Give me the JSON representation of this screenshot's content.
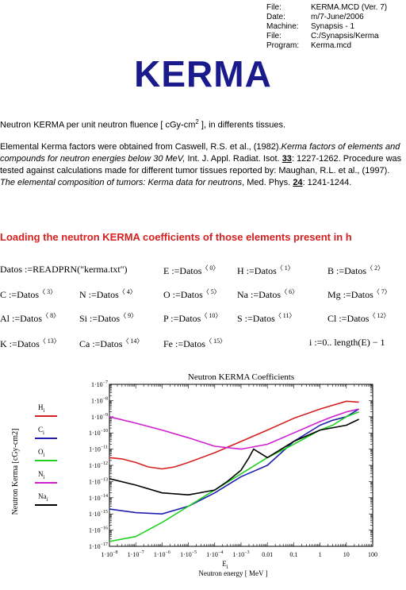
{
  "header": {
    "rows": [
      {
        "key": "File:",
        "value": "KERMA.MCD  (Ver. 7)"
      },
      {
        "key": "Date:",
        "value": "m/7-June/2006"
      },
      {
        "key": "Machine:",
        "value": "Synapsis - 1"
      },
      {
        "key": "File:",
        "value": "C:/Synapsis/Kerma"
      },
      {
        "key": "Program:",
        "value": "Kerma.mcd"
      }
    ]
  },
  "title": "KERMA",
  "intro": {
    "pre": "Neutron KERMA per unit neutron fluence [ cGy-cm",
    "sup": "2",
    "post": " ], in differents tissues."
  },
  "refs": {
    "a": "Elemental Kerma factors were obtained from Caswell, R.S. et al.,  (1982).",
    "b": "Kerma factors of elements and compounds for neutron energies below 30 MeV,",
    "c": "  Int. J. Appl. Radiat. Isot. ",
    "d": "33",
    "e": ": 1227-1262. Procedure was tested against calculations made for different tumor tissues reported by: Maughan, R.L. et al.,  (1997). ",
    "f": "The elemental composition of tumors: Kerma data for neutrons",
    "g": ", Med. Phys. ",
    "h": "24",
    "i": ": 1241-1244."
  },
  "section_heading": "Loading the neutron KERMA coefficients of those elements present in h",
  "equations": [
    {
      "lhs": "Datos",
      "op": " :=",
      "rhs": "READPRN(\"kerma.txt\")",
      "sup": ""
    },
    {
      "lhs": "E",
      "op": " :=",
      "rhs": "Datos",
      "sup": "〈 0〉"
    },
    {
      "lhs": "H",
      "op": " :=",
      "rhs": "Datos",
      "sup": "〈 1〉"
    },
    {
      "lhs": "B",
      "op": " :=",
      "rhs": "Datos",
      "sup": "〈 2〉"
    },
    {
      "lhs": "C",
      "op": " :=",
      "rhs": "Datos",
      "sup": "〈 3〉"
    },
    {
      "lhs": "N",
      "op": " :=",
      "rhs": "Datos",
      "sup": "〈 4〉"
    },
    {
      "lhs": "O",
      "op": " :=",
      "rhs": "Datos",
      "sup": "〈 5〉"
    },
    {
      "lhs": "Na",
      "op": " :=",
      "rhs": "Datos",
      "sup": "〈 6〉"
    },
    {
      "lhs": "Mg",
      "op": " :=",
      "rhs": "Datos",
      "sup": "〈 7〉"
    },
    {
      "lhs": "Al",
      "op": " :=",
      "rhs": "Datos",
      "sup": "〈 8〉"
    },
    {
      "lhs": "Si",
      "op": " :=",
      "rhs": "Datos",
      "sup": "〈 9〉"
    },
    {
      "lhs": "P",
      "op": " :=",
      "rhs": "Datos",
      "sup": "〈 10〉"
    },
    {
      "lhs": "S",
      "op": " :=",
      "rhs": "Datos",
      "sup": "〈 11〉"
    },
    {
      "lhs": "Cl",
      "op": " :=",
      "rhs": "Datos",
      "sup": "〈 12〉"
    },
    {
      "lhs": "K",
      "op": " :=",
      "rhs": "Datos",
      "sup": "〈 13〉"
    },
    {
      "lhs": "Ca",
      "op": " :=",
      "rhs": "Datos",
      "sup": "〈 14〉"
    },
    {
      "lhs": "Fe",
      "op": " :=",
      "rhs": "Datos",
      "sup": "〈 15〉"
    },
    {
      "lhs": "i",
      "op": " :=",
      "rhs": "0..  length(E) − 1",
      "sup": ""
    }
  ],
  "chart_data": {
    "type": "line",
    "title": "Neutron KERMA Coefficients",
    "xlabel_symbol": "E",
    "xlabel_sub": "i",
    "xlabel": "Neutron energy  [ MeV ]",
    "ylabel": "Neutron Kerma  [cGy-cm2]",
    "x_scale": "log",
    "y_scale": "log",
    "xlim": [
      1e-08,
      100
    ],
    "ylim": [
      1e-17,
      1e-07
    ],
    "x_ticks": [
      {
        "base": "1·10",
        "exp": "−8"
      },
      {
        "base": "1·10",
        "exp": "−7"
      },
      {
        "base": "1·10",
        "exp": "−6"
      },
      {
        "base": "1·10",
        "exp": "−5"
      },
      {
        "base": "1·10",
        "exp": "−4"
      },
      {
        "base": "1·10",
        "exp": "−3"
      },
      {
        "base": "0.01",
        "exp": ""
      },
      {
        "base": "0.1",
        "exp": ""
      },
      {
        "base": "1",
        "exp": ""
      },
      {
        "base": "10",
        "exp": ""
      },
      {
        "base": "100",
        "exp": ""
      }
    ],
    "y_ticks": [
      {
        "base": "1·10",
        "exp": "−7"
      },
      {
        "base": "1·10",
        "exp": "−8"
      },
      {
        "base": "1·10",
        "exp": "−9"
      },
      {
        "base": "1·10",
        "exp": "−10"
      },
      {
        "base": "1·10",
        "exp": "−11"
      },
      {
        "base": "1·10",
        "exp": "−12"
      },
      {
        "base": "1·10",
        "exp": "−13"
      },
      {
        "base": "1·10",
        "exp": "−14"
      },
      {
        "base": "1·10",
        "exp": "−15"
      },
      {
        "base": "1·10",
        "exp": "−16"
      },
      {
        "base": "1·10",
        "exp": "−17"
      }
    ],
    "series": [
      {
        "name": "H",
        "sub": "i",
        "color": "#d42020",
        "x": [
          1e-08,
          3e-08,
          1e-07,
          3e-07,
          1e-06,
          3e-06,
          1e-05,
          0.0001,
          0.001,
          0.01,
          0.1,
          1,
          10,
          30
        ],
        "y": [
          3e-12,
          2.5e-12,
          1.5e-12,
          8e-13,
          6e-13,
          8e-13,
          1.5e-12,
          6e-12,
          3e-11,
          1.5e-10,
          8e-10,
          3e-09,
          9e-09,
          8e-09
        ]
      },
      {
        "name": "C",
        "sub": "i",
        "color": "#2020b0",
        "x": [
          1e-08,
          1e-07,
          1e-06,
          1e-05,
          0.0001,
          0.001,
          0.01,
          0.1,
          1,
          3,
          10,
          30
        ],
        "y": [
          2e-15,
          1.2e-15,
          1e-15,
          3e-15,
          2e-14,
          2e-13,
          1e-12,
          3e-11,
          3e-10,
          6e-10,
          1e-09,
          3e-09
        ]
      },
      {
        "name": "O",
        "sub": "i",
        "color": "#20d020",
        "x": [
          1e-08,
          1e-07,
          1e-06,
          1e-05,
          0.0001,
          0.001,
          0.01,
          0.1,
          1,
          3,
          10,
          30
        ],
        "y": [
          2e-17,
          4e-17,
          3e-16,
          3e-15,
          3e-14,
          3e-13,
          3e-12,
          2e-11,
          1.5e-10,
          3e-10,
          1e-09,
          2e-09
        ]
      },
      {
        "name": "N",
        "sub": "i",
        "color": "#d020d0",
        "x": [
          1e-08,
          1e-07,
          1e-06,
          1e-05,
          0.0001,
          0.001,
          0.01,
          0.1,
          1,
          3,
          10,
          30
        ],
        "y": [
          1e-09,
          4e-10,
          1.5e-10,
          5e-11,
          1.5e-11,
          1e-11,
          2e-11,
          1e-10,
          5e-10,
          1e-09,
          2e-09,
          3e-09
        ]
      },
      {
        "name": "Na",
        "sub": "i",
        "color": "#000000",
        "x": [
          1e-08,
          1e-07,
          1e-06,
          1e-05,
          0.0001,
          0.0003,
          0.001,
          0.002,
          0.003,
          0.01,
          0.1,
          1,
          10,
          30
        ],
        "y": [
          1.5e-13,
          6e-14,
          2e-14,
          1.5e-14,
          3e-14,
          1e-13,
          5e-13,
          3e-12,
          1e-11,
          3e-12,
          3e-11,
          1.5e-10,
          3e-10,
          7e-10
        ]
      }
    ]
  }
}
